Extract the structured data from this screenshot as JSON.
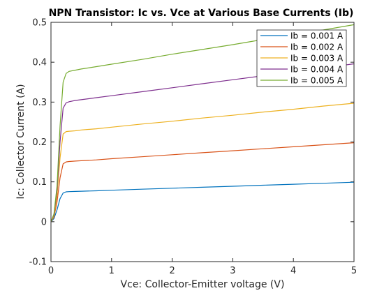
{
  "chart_data": {
    "type": "line",
    "title": "NPN Transistor: Ic vs. Vce at Various Base Currents (Ib)",
    "xlabel": "Vce: Collector-Emitter voltage (V)",
    "ylabel": "Ic: Collector Current (A)",
    "xlim": [
      0,
      5
    ],
    "ylim": [
      -0.1,
      0.5
    ],
    "xticks": [
      0,
      1,
      2,
      3,
      4,
      5
    ],
    "xtick_labels": [
      "0",
      "1",
      "2",
      "3",
      "4",
      "5"
    ],
    "yticks": [
      -0.1,
      0,
      0.1,
      0.2,
      0.3,
      0.4,
      0.5
    ],
    "ytick_labels": [
      "-0.1",
      "0",
      "0.1",
      "0.2",
      "0.3",
      "0.4",
      "0.5"
    ],
    "grid": false,
    "legend_position": "top-right",
    "x": [
      0,
      0.05,
      0.1,
      0.15,
      0.2,
      0.25,
      0.3,
      0.4,
      0.5,
      0.75,
      1,
      1.5,
      2,
      2.5,
      3,
      3.5,
      4,
      4.5,
      5
    ],
    "series": [
      {
        "name": "Ib = 0.001 A",
        "color": "#0072bd",
        "values": [
          0,
          0.008,
          0.03,
          0.058,
          0.072,
          0.075,
          0.0755,
          0.076,
          0.0765,
          0.0775,
          0.079,
          0.0815,
          0.084,
          0.0865,
          0.089,
          0.0915,
          0.094,
          0.0965,
          0.099
        ]
      },
      {
        "name": "Ib = 0.002 A",
        "color": "#d95319",
        "values": [
          0,
          0.012,
          0.05,
          0.11,
          0.145,
          0.15,
          0.151,
          0.152,
          0.153,
          0.155,
          0.158,
          0.163,
          0.168,
          0.173,
          0.178,
          0.183,
          0.188,
          0.193,
          0.198
        ]
      },
      {
        "name": "Ib = 0.003 A",
        "color": "#edb120",
        "values": [
          0,
          0.015,
          0.065,
          0.16,
          0.22,
          0.226,
          0.227,
          0.228,
          0.23,
          0.233,
          0.237,
          0.245,
          0.252,
          0.26,
          0.267,
          0.275,
          0.282,
          0.29,
          0.297
        ]
      },
      {
        "name": "Ib = 0.004 A",
        "color": "#7e2f8e",
        "values": [
          0,
          0.018,
          0.08,
          0.2,
          0.285,
          0.298,
          0.301,
          0.304,
          0.306,
          0.311,
          0.316,
          0.326,
          0.336,
          0.346,
          0.356,
          0.366,
          0.376,
          0.386,
          0.396
        ]
      },
      {
        "name": "Ib = 0.005 A",
        "color": "#77ac30",
        "values": [
          0,
          0.02,
          0.09,
          0.24,
          0.35,
          0.372,
          0.377,
          0.38,
          0.383,
          0.389,
          0.395,
          0.407,
          0.42,
          0.432,
          0.444,
          0.457,
          0.469,
          0.481,
          0.494
        ]
      }
    ]
  }
}
